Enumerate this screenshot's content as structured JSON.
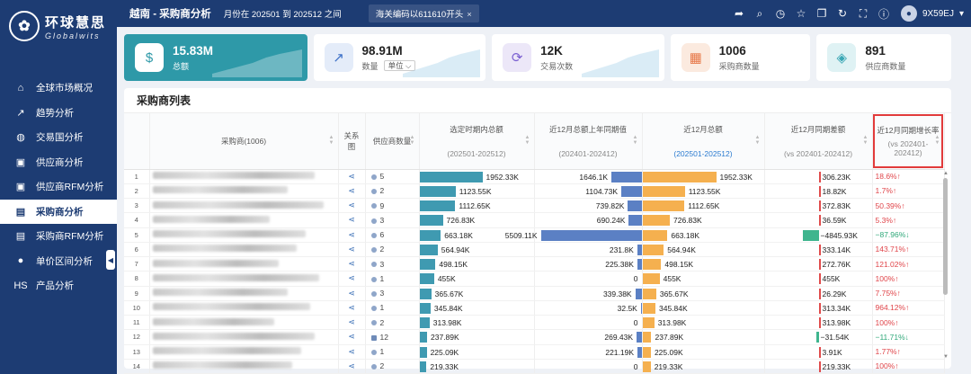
{
  "brand": {
    "mark": "✿",
    "name_cn": "环球慧思",
    "name_en": "Globalwits"
  },
  "sidebar": {
    "items": [
      {
        "label": "全球市场概况",
        "icon": "home-icon",
        "glyph": "⌂"
      },
      {
        "label": "趋势分析",
        "icon": "trend-icon",
        "glyph": "↗"
      },
      {
        "label": "交易国分析",
        "icon": "globe-icon",
        "glyph": "◍"
      },
      {
        "label": "供应商分析",
        "icon": "box-icon",
        "glyph": "▣"
      },
      {
        "label": "供应商RFM分析",
        "icon": "box-rfm-icon",
        "glyph": "▣"
      },
      {
        "label": "采购商分析",
        "icon": "buyer-icon",
        "glyph": "▤",
        "active": true
      },
      {
        "label": "采购商RFM分析",
        "icon": "buyer-rfm-icon",
        "glyph": "▤"
      },
      {
        "label": "单价区间分析",
        "icon": "price-icon",
        "glyph": "●"
      },
      {
        "label": "产品分析",
        "icon": "product-icon",
        "glyph": "HS"
      }
    ]
  },
  "topbar": {
    "title": "越南 - 采购商分析",
    "range": "月份在 202501 到 202512 之间",
    "filter": "海关编码以611610开头",
    "filter_close": "×",
    "icons": [
      "share-icon",
      "search-icon",
      "clock-icon",
      "star-icon",
      "copy-icon",
      "refresh-icon",
      "fullscreen-icon",
      "help-icon"
    ],
    "user": "9X59EJ",
    "user_caret": "▾"
  },
  "cards": [
    {
      "value": "15.83M",
      "label": "总额",
      "icon": "dollar-icon",
      "glyph": "$",
      "primary": true
    },
    {
      "value": "98.91M",
      "label": "数量",
      "unit": "单位",
      "icon": "chart-icon",
      "glyph": "↗"
    },
    {
      "value": "12K",
      "label": "交易次数",
      "icon": "cycle-icon",
      "glyph": "⟳"
    },
    {
      "value": "1006",
      "label": "采购商数量",
      "icon": "buyer-card-icon",
      "glyph": "▦"
    },
    {
      "value": "891",
      "label": "供应商数量",
      "icon": "supplier-card-icon",
      "glyph": "◈"
    }
  ],
  "table": {
    "title": "采购商列表",
    "headers": {
      "buyer": "采购商(1006)",
      "relation": "关系图",
      "supplier_count": "供应商数量",
      "period_total": "选定时期内总额",
      "period_total_sub": "(202501-202512)",
      "prev_total": "近12月总额上年同期值",
      "prev_total_sub": "(202401-202412)",
      "recent_total": "近12月总额",
      "recent_total_sub": "(202501-202512)",
      "diff": "近12月同期差额",
      "diff_sub": "(vs 202401-202412)",
      "growth": "近12月同期增长率",
      "growth_sub": "(vs 202401-202412)"
    },
    "rows": [
      {
        "idx": "1",
        "suppliers": "5",
        "total": "1952.33K",
        "total_v": 1952.33,
        "prev": "1646.1K",
        "prev_v": 1646.1,
        "recent": "1952.33K",
        "recent_v": 1952.33,
        "diff": "306.23K",
        "diff_v": 306.23,
        "growth": "18.6%↑"
      },
      {
        "idx": "2",
        "suppliers": "2",
        "total": "1123.55K",
        "total_v": 1123.55,
        "prev": "1104.73K",
        "prev_v": 1104.73,
        "recent": "1123.55K",
        "recent_v": 1123.55,
        "diff": "18.82K",
        "diff_v": 18.82,
        "growth": "1.7%↑"
      },
      {
        "idx": "3",
        "suppliers": "9",
        "total": "1112.65K",
        "total_v": 1112.65,
        "prev": "739.82K",
        "prev_v": 739.82,
        "recent": "1112.65K",
        "recent_v": 1112.65,
        "diff": "372.83K",
        "diff_v": 372.83,
        "growth": "50.39%↑"
      },
      {
        "idx": "4",
        "suppliers": "3",
        "total": "726.83K",
        "total_v": 726.83,
        "prev": "690.24K",
        "prev_v": 690.24,
        "recent": "726.83K",
        "recent_v": 726.83,
        "diff": "36.59K",
        "diff_v": 36.59,
        "growth": "5.3%↑"
      },
      {
        "idx": "5",
        "suppliers": "6",
        "total": "663.18K",
        "total_v": 663.18,
        "prev": "5509.11K",
        "prev_v": 5509.11,
        "recent": "663.18K",
        "recent_v": 663.18,
        "diff": "−4845.93K",
        "diff_v": -4845.93,
        "growth": "−87.96%↓"
      },
      {
        "idx": "6",
        "suppliers": "2",
        "total": "564.94K",
        "total_v": 564.94,
        "prev": "231.8K",
        "prev_v": 231.8,
        "recent": "564.94K",
        "recent_v": 564.94,
        "diff": "333.14K",
        "diff_v": 333.14,
        "growth": "143.71%↑"
      },
      {
        "idx": "7",
        "suppliers": "3",
        "total": "498.15K",
        "total_v": 498.15,
        "prev": "225.38K",
        "prev_v": 225.38,
        "recent": "498.15K",
        "recent_v": 498.15,
        "diff": "272.76K",
        "diff_v": 272.76,
        "growth": "121.02%↑"
      },
      {
        "idx": "8",
        "suppliers": "1",
        "total": "455K",
        "total_v": 455,
        "prev": "0",
        "prev_v": 0,
        "recent": "455K",
        "recent_v": 455,
        "diff": "455K",
        "diff_v": 455,
        "growth": "100%↑"
      },
      {
        "idx": "9",
        "suppliers": "3",
        "total": "365.67K",
        "total_v": 365.67,
        "prev": "339.38K",
        "prev_v": 339.38,
        "recent": "365.67K",
        "recent_v": 365.67,
        "diff": "26.29K",
        "diff_v": 26.29,
        "growth": "7.75%↑"
      },
      {
        "idx": "10",
        "suppliers": "1",
        "total": "345.84K",
        "total_v": 345.84,
        "prev": "32.5K",
        "prev_v": 32.5,
        "recent": "345.84K",
        "recent_v": 345.84,
        "diff": "313.34K",
        "diff_v": 313.34,
        "growth": "964.12%↑"
      },
      {
        "idx": "11",
        "suppliers": "2",
        "total": "313.98K",
        "total_v": 313.98,
        "prev": "0",
        "prev_v": 0,
        "recent": "313.98K",
        "recent_v": 313.98,
        "diff": "313.98K",
        "diff_v": 313.98,
        "growth": "100%↑"
      },
      {
        "idx": "12",
        "suppliers": "12",
        "total": "237.89K",
        "total_v": 237.89,
        "prev": "269.43K",
        "prev_v": 269.43,
        "recent": "237.89K",
        "recent_v": 237.89,
        "diff": "−31.54K",
        "diff_v": -31.54,
        "growth": "−11.71%↓"
      },
      {
        "idx": "13",
        "suppliers": "1",
        "total": "225.09K",
        "total_v": 225.09,
        "prev": "221.19K",
        "prev_v": 221.19,
        "recent": "225.09K",
        "recent_v": 225.09,
        "diff": "3.91K",
        "diff_v": 3.91,
        "growth": "1.77%↑"
      },
      {
        "idx": "14",
        "suppliers": "2",
        "total": "219.33K",
        "total_v": 219.33,
        "prev": "0",
        "prev_v": 0,
        "recent": "219.33K",
        "recent_v": 219.33,
        "diff": "219.33K",
        "diff_v": 219.33,
        "growth": "100%↑"
      }
    ]
  },
  "colors": {
    "sidebar": "#1d3c73",
    "primary_card": "#2e99a8",
    "bar_total": "#3f9ab1",
    "bar_prev": "#5b80c4",
    "bar_recent": "#f5b04f",
    "bar_diff_pos": "#e04b4b",
    "bar_diff_neg": "#3fb58e",
    "growth_pos": "#e0454a",
    "growth_neg": "#2fa879"
  }
}
